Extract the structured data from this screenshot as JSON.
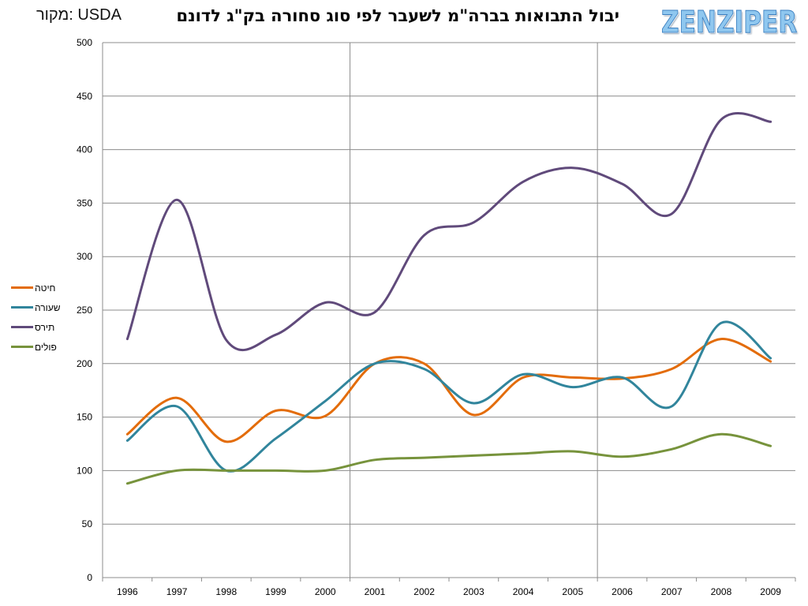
{
  "source_label": "מקור: USDA",
  "logo_text": "ZENZIPER",
  "chart_data": {
    "type": "line",
    "title": "יבול התבואות בברה\"מ לשעבר לפי סוג סחורה בק\"ג לדונם",
    "xlabel": "",
    "ylabel": "",
    "x": [
      "1996",
      "1997",
      "1998",
      "1999",
      "2000",
      "2001",
      "2002",
      "2003",
      "2004",
      "2005",
      "2006",
      "2007",
      "2008",
      "2009"
    ],
    "ylim": [
      0,
      500
    ],
    "yticks": [
      0,
      50,
      100,
      150,
      200,
      250,
      300,
      350,
      400,
      450,
      500
    ],
    "grid": "horizontal",
    "vertical_markers_after": [
      "2000",
      "2005"
    ],
    "legend_position": "left",
    "series": [
      {
        "name": "חיטה",
        "color": "#e36c0a",
        "values": [
          134,
          168,
          127,
          156,
          151,
          200,
          200,
          152,
          187,
          187,
          186,
          195,
          223,
          202
        ]
      },
      {
        "name": "שעורה",
        "color": "#31859c",
        "values": [
          128,
          160,
          100,
          130,
          165,
          200,
          195,
          163,
          190,
          178,
          187,
          160,
          238,
          205
        ]
      },
      {
        "name": "תירס",
        "color": "#604a7b",
        "values": [
          223,
          353,
          222,
          227,
          257,
          248,
          320,
          332,
          370,
          383,
          368,
          340,
          428,
          426
        ]
      },
      {
        "name": "פולים",
        "color": "#77933c",
        "values": [
          88,
          100,
          100,
          100,
          100,
          110,
          112,
          114,
          116,
          118,
          113,
          120,
          134,
          123
        ]
      }
    ]
  }
}
